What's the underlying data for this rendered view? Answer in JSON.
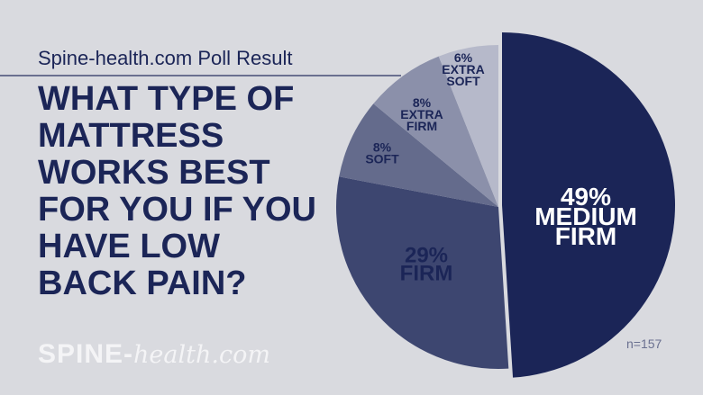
{
  "subtitle": "Spine-health.com Poll Result",
  "title": "WHAT TYPE OF MATTRESS WORKS BEST FOR YOU IF YOU HAVE LOW BACK PAIN?",
  "logo": {
    "brand": "SPINE",
    "dash": "-",
    "suffix": "health.com"
  },
  "chart_data": {
    "type": "pie",
    "title": "WHAT TYPE OF MATTRESS WORKS BEST FOR YOU IF YOU HAVE LOW BACK PAIN?",
    "note": "n=157",
    "slices": [
      {
        "label": "MEDIUM FIRM",
        "value": 49,
        "pct_label": "49%",
        "color": "#1b2557",
        "exploded": true,
        "text_color": "#ffffff"
      },
      {
        "label": "FIRM",
        "value": 29,
        "pct_label": "29%",
        "color": "#3d4670",
        "text_color": "#1b2557"
      },
      {
        "label": "SOFT",
        "value": 8,
        "pct_label": "8%",
        "color": "#646b8c",
        "text_color": "#1b2557"
      },
      {
        "label": "EXTRA FIRM",
        "value": 8,
        "pct_label": "8%",
        "color": "#8b90aa",
        "text_color": "#1b2557"
      },
      {
        "label": "EXTRA SOFT",
        "value": 6,
        "pct_label": "6%",
        "color": "#b6b9ca",
        "text_color": "#1b2557"
      }
    ]
  }
}
